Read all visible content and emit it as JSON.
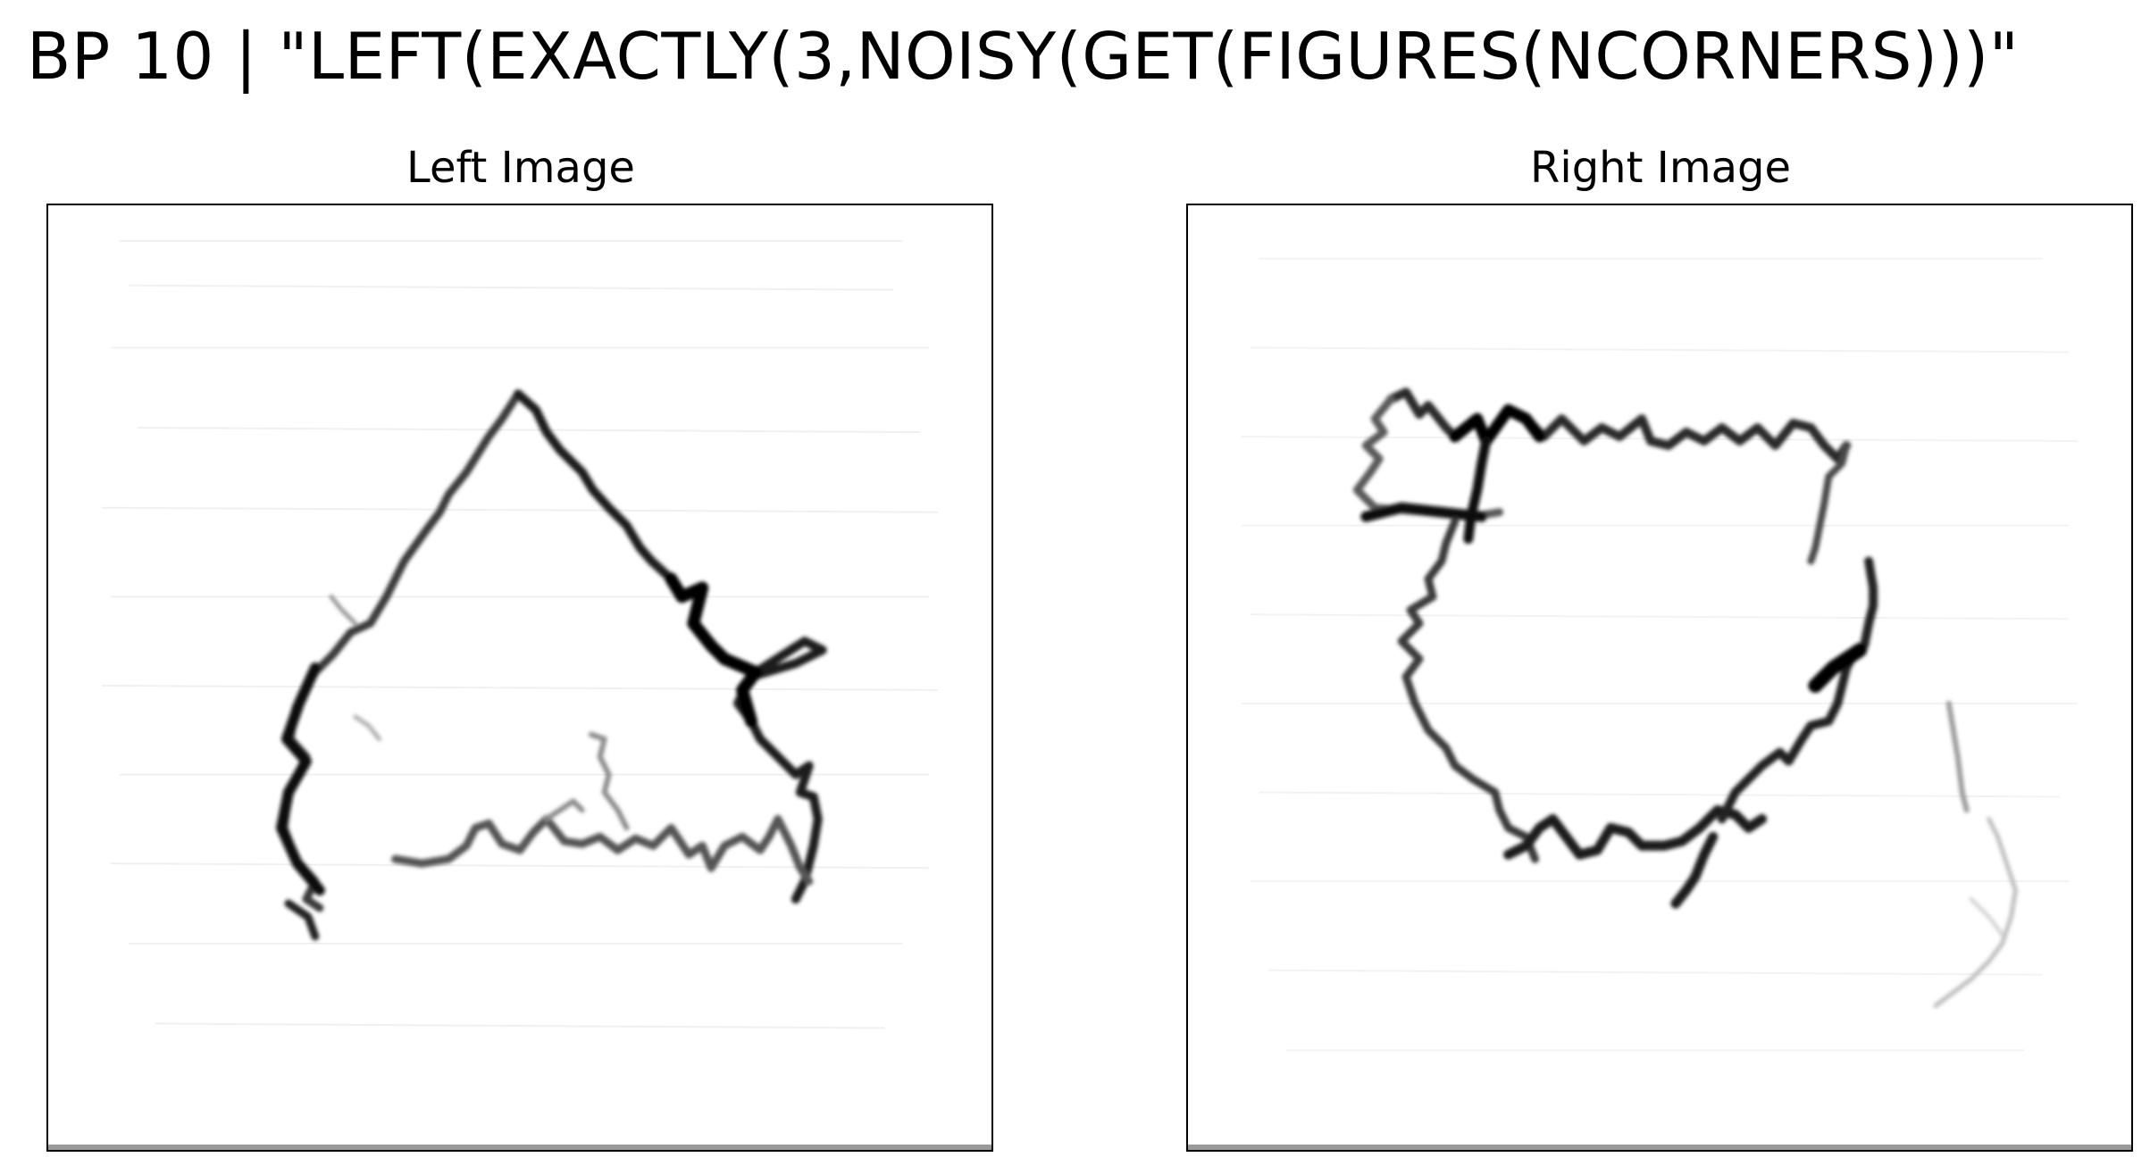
{
  "figure": {
    "title": "BP 10 | \"LEFT(EXACTLY(3,NOISY(GET(FIGURES(NCORNERS)))\""
  },
  "panels": [
    {
      "title": "Left Image",
      "shape": "noisy-triangle"
    },
    {
      "title": "Right Image",
      "shape": "noisy-quadrilateral"
    }
  ],
  "colors": {
    "background": "#ffffff",
    "stroke_dark": "#111111",
    "stroke_mid": "#555555",
    "stroke_light": "#9a9a9a",
    "frame": "#000000"
  }
}
